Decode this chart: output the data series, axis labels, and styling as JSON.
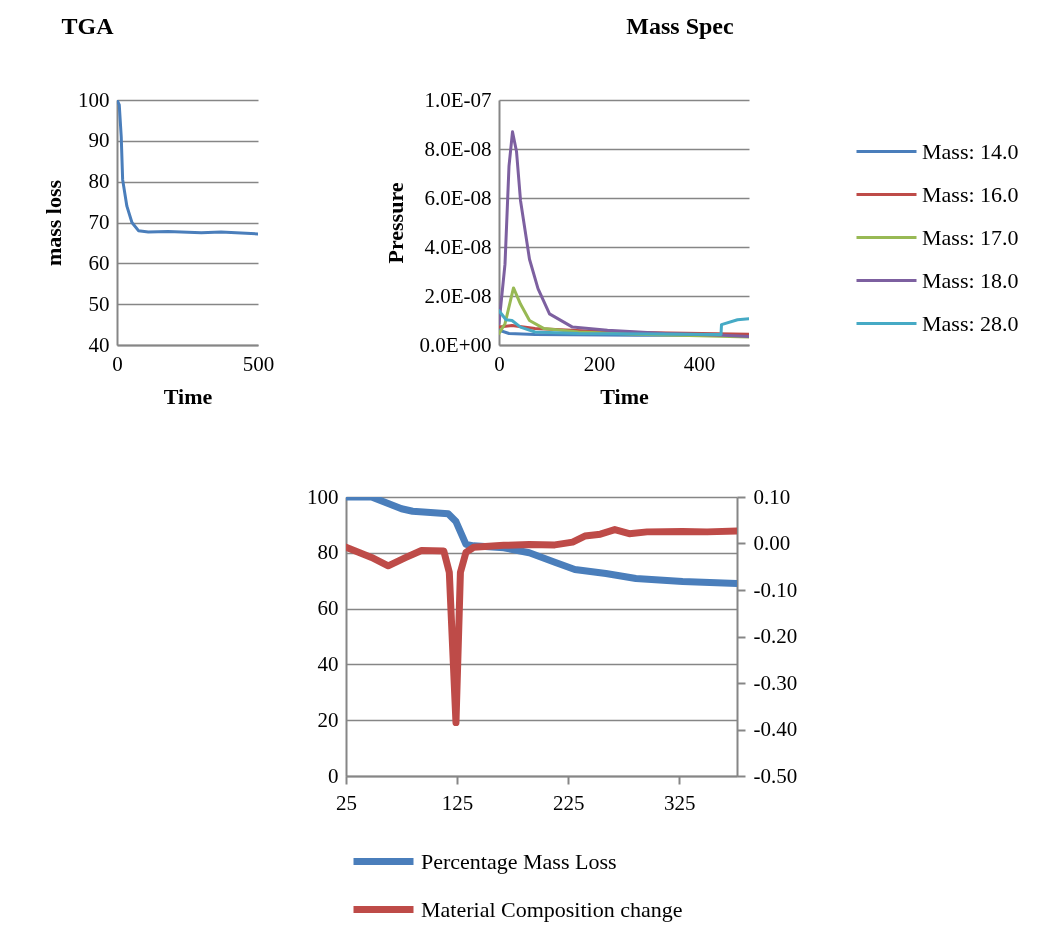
{
  "chart_data": [
    {
      "type": "line",
      "title": "TGA",
      "xlabel": "Time",
      "ylabel": "mass loss",
      "xlim": [
        0,
        500
      ],
      "xticks": [
        0,
        500
      ],
      "ylim": [
        40,
        100
      ],
      "yticks": [
        40,
        50,
        60,
        70,
        80,
        90,
        100
      ],
      "grid": "y",
      "color": "#4a7ebb",
      "x": [
        0,
        8,
        15,
        20,
        35,
        53,
        76,
        111,
        181,
        299,
        369,
        500
      ],
      "values": [
        100,
        98.8,
        91,
        80.5,
        74,
        70,
        68,
        67.7,
        67.8,
        67.5,
        67.7,
        67.2
      ]
    },
    {
      "type": "line",
      "title": "Mass Spec",
      "xlabel": "Time",
      "ylabel": "Pressure",
      "xlim": [
        0,
        500
      ],
      "xticks": [
        0,
        200,
        400
      ],
      "ylim": [
        0,
        1e-07
      ],
      "yticks": [
        {
          "value": 0,
          "label": "0.0E+00"
        },
        {
          "value": 2e-08,
          "label": "2.0E-08"
        },
        {
          "value": 4e-08,
          "label": "4.0E-08"
        },
        {
          "value": 6e-08,
          "label": "6.0E-08"
        },
        {
          "value": 8e-08,
          "label": "8.0E-08"
        },
        {
          "value": 1e-07,
          "label": "1.0E-07"
        }
      ],
      "grid": "y",
      "legend": "right",
      "series": [
        {
          "name": "Mass: 14.0",
          "color": "#4a7ebb",
          "x": [
            0,
            20,
            72,
            275,
            500
          ],
          "values": [
            6e-09,
            4.7e-09,
            4.3e-09,
            4e-09,
            4e-09
          ]
        },
        {
          "name": "Mass: 16.0",
          "color": "#be4b48",
          "x": [
            0,
            26,
            72,
            217,
            500
          ],
          "values": [
            7.3e-09,
            8e-09,
            6.7e-09,
            5.3e-09,
            4.4e-09
          ]
        },
        {
          "name": "Mass: 17.0",
          "color": "#98b954",
          "x": [
            0,
            12,
            29,
            43,
            61,
            90,
            159,
            275,
            442,
            500
          ],
          "values": [
            4.7e-09,
            8.7e-09,
            2.33e-08,
            1.67e-08,
            1e-08,
            6.7e-09,
            5.3e-09,
            4.4e-09,
            3.6e-09,
            3.3e-09
          ]
        },
        {
          "name": "Mass: 18.0",
          "color": "#7d60a0",
          "x": [
            0,
            12,
            20,
            27,
            35,
            43,
            61,
            78,
            101,
            147,
            217,
            332,
            448,
            500
          ],
          "values": [
            8.7e-09,
            3.3e-08,
            7.3e-08,
            8.7e-08,
            7.9e-08,
            5.9e-08,
            3.5e-08,
            2.3e-08,
            1.27e-08,
            7.3e-09,
            6e-09,
            4.7e-09,
            4e-09,
            3.5e-09
          ]
        },
        {
          "name": "Mass: 28.0",
          "color": "#46aac5",
          "x": [
            0,
            14,
            26,
            43,
            72,
            159,
            444,
            445,
            477,
            500
          ],
          "values": [
            1.4e-08,
            1.03e-08,
            1e-08,
            7.3e-09,
            5.3e-09,
            4.7e-09,
            4.3e-09,
            8.3e-09,
            1.03e-08,
            1.07e-08
          ]
        }
      ]
    },
    {
      "type": "line",
      "xlim": [
        25,
        377
      ],
      "xticks": [
        25,
        125,
        225,
        325
      ],
      "ylim": [
        0,
        100
      ],
      "yticks": [
        0,
        20,
        40,
        60,
        80,
        100
      ],
      "y2lim": [
        -0.5,
        0.1
      ],
      "y2ticks": [
        {
          "value": -0.5,
          "label": "-0.50"
        },
        {
          "value": -0.4,
          "label": "-0.40"
        },
        {
          "value": -0.3,
          "label": "-0.30"
        },
        {
          "value": -0.2,
          "label": "-0.20"
        },
        {
          "value": -0.1,
          "label": "-0.10"
        },
        {
          "value": 0,
          "label": "0.00"
        },
        {
          "value": 0.1,
          "label": "0.10"
        }
      ],
      "grid": "y",
      "legend": "bottom",
      "series": [
        {
          "name": "Percentage Mass Loss",
          "color": "#4a7ebb",
          "x": [
            25,
            48,
            75,
            85,
            117,
            124,
            133,
            140,
            167,
            190,
            213,
            231,
            259,
            286,
            328,
            377
          ],
          "values": [
            100,
            100,
            95.8,
            94.9,
            94,
            91.2,
            83,
            82.5,
            81.8,
            80,
            76.6,
            74,
            72.6,
            70.8,
            69.7,
            69
          ]
        },
        {
          "name": "Material Composition change",
          "color": "#be4b48",
          "axis": "y2",
          "x": [
            25,
            48,
            63,
            79,
            93,
            113,
            118,
            124,
            128,
            133,
            140,
            167,
            190,
            213,
            229,
            240,
            254,
            267,
            280,
            296,
            328,
            350,
            377
          ],
          "values": [
            -0.008,
            -0.03,
            -0.048,
            -0.03,
            -0.015,
            -0.016,
            -0.062,
            -0.385,
            -0.062,
            -0.019,
            -0.008,
            -0.004,
            -0.002,
            -0.003,
            0.003,
            0.016,
            0.02,
            0.03,
            0.021,
            0.025,
            0.026,
            0.025,
            0.027
          ]
        }
      ]
    }
  ]
}
